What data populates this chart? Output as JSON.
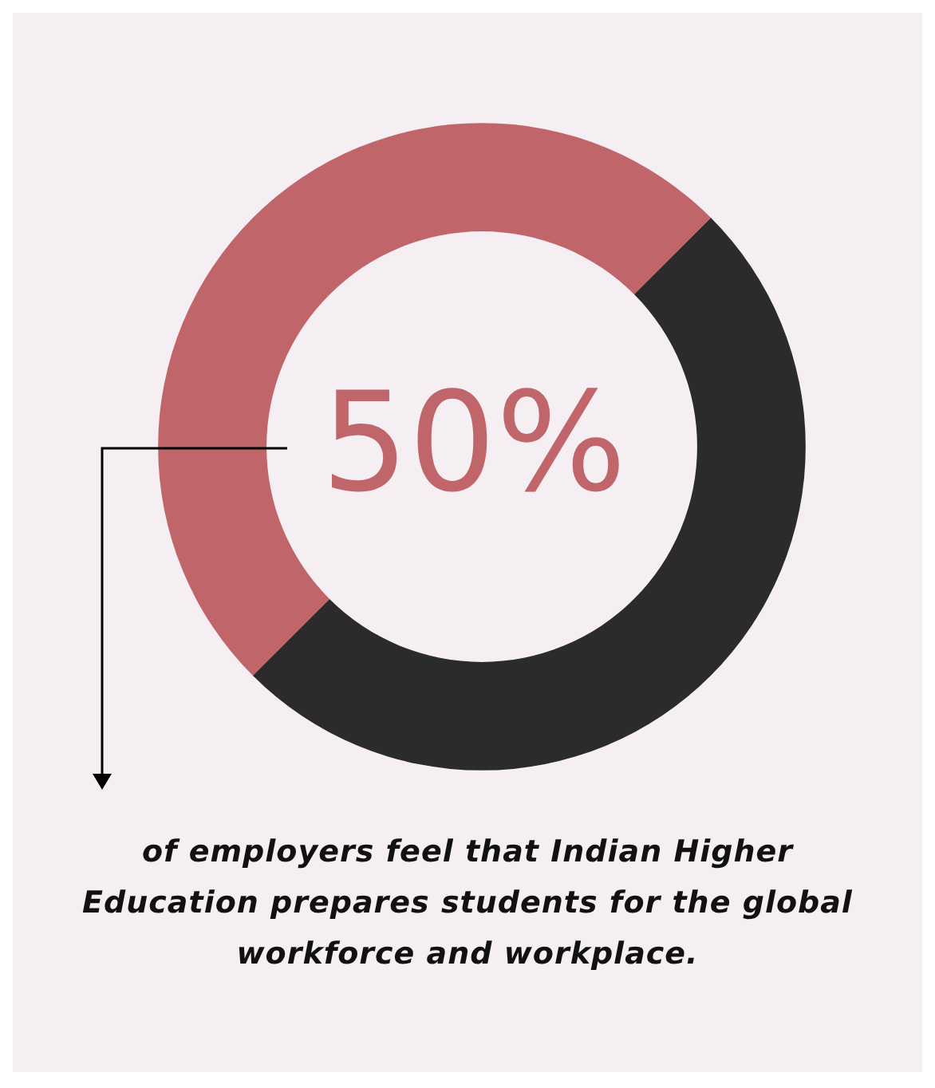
{
  "chart_data": {
    "type": "donut",
    "categories": [
      null,
      null
    ],
    "values": [
      50,
      50
    ],
    "colors": [
      "#c0666a",
      "#2b2b2b"
    ],
    "value_labels": [
      "50%",
      null
    ],
    "annotations": [
      "of employers feel that Indian Higher Education prepares students for the global workforce and workplace."
    ]
  }
}
